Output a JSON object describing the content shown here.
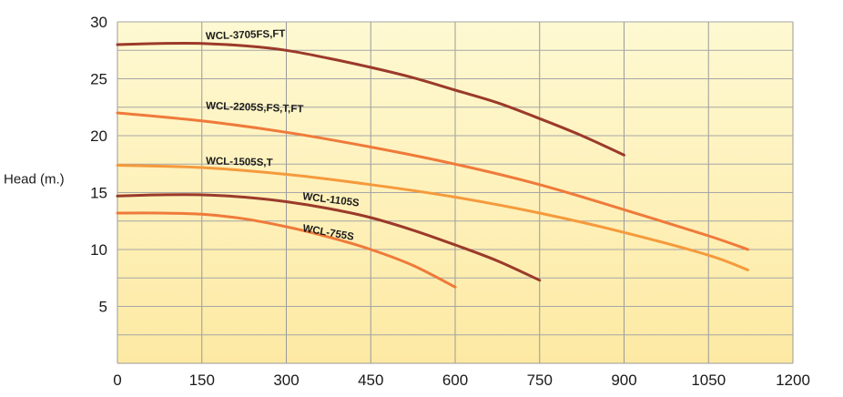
{
  "chart_data": {
    "type": "line",
    "title": "",
    "xlabel": "",
    "ylabel": "Head (m.)",
    "xlim": [
      0,
      1200
    ],
    "ylim": [
      0,
      30
    ],
    "x_ticks": [
      0,
      150,
      300,
      450,
      600,
      750,
      900,
      1050,
      1200
    ],
    "y_ticks": [
      5,
      10,
      15,
      20,
      25,
      30
    ],
    "y_gridlines": [
      2.5,
      5,
      7.5,
      10,
      12.5,
      15,
      17.5,
      20,
      22.5,
      25,
      27.5,
      30
    ],
    "grid": true,
    "legend": "inline labels on curves",
    "background_gradient": [
      "#fef9d2",
      "#fde9a3"
    ],
    "series": [
      {
        "name": "WCL-3705FS,FT",
        "color": "#9b3a2a",
        "x": [
          0,
          75,
          150,
          225,
          300,
          375,
          450,
          525,
          600,
          675,
          750,
          825,
          900
        ],
        "values": [
          28,
          28.1,
          28.1,
          27.9,
          27.5,
          26.8,
          26,
          25.1,
          24,
          22.9,
          21.5,
          20,
          18.3
        ]
      },
      {
        "name": "WCL-2205S,FS,T,FT",
        "color": "#ef7a3a",
        "x": [
          0,
          150,
          300,
          450,
          600,
          750,
          900,
          1050,
          1120
        ],
        "values": [
          22,
          21.3,
          20.3,
          19,
          17.5,
          15.7,
          13.5,
          11.2,
          10
        ]
      },
      {
        "name": "WCL-1505S,T",
        "color": "#f59a3c",
        "x": [
          0,
          150,
          300,
          450,
          600,
          750,
          900,
          1050,
          1120
        ],
        "values": [
          17.4,
          17.2,
          16.6,
          15.7,
          14.6,
          13.2,
          11.5,
          9.5,
          8.2
        ]
      },
      {
        "name": "WCL-1105S",
        "color": "#9b3a2a",
        "x": [
          0,
          75,
          150,
          225,
          300,
          375,
          450,
          525,
          600,
          675,
          750
        ],
        "values": [
          14.7,
          14.8,
          14.8,
          14.6,
          14.2,
          13.6,
          12.8,
          11.7,
          10.4,
          9,
          7.3
        ]
      },
      {
        "name": "WCL-755S",
        "color": "#ef7a3a",
        "x": [
          0,
          75,
          150,
          225,
          300,
          375,
          450,
          525,
          600
        ],
        "values": [
          13.2,
          13.2,
          13.1,
          12.7,
          12,
          11.1,
          10,
          8.6,
          6.7
        ]
      }
    ]
  }
}
